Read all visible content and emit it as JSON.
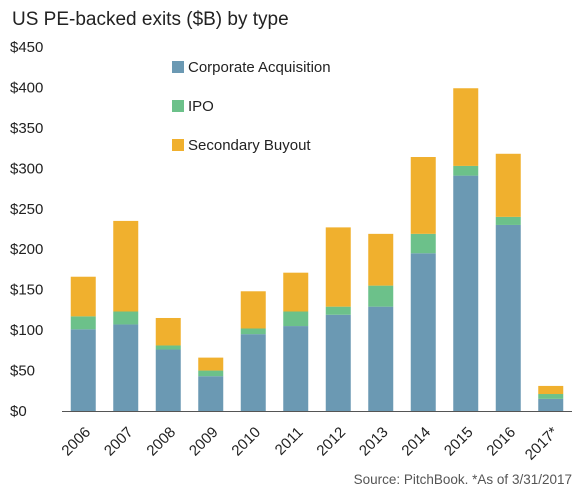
{
  "chart_data": {
    "type": "bar",
    "stacked": true,
    "title": "US PE-backed exits ($B) by type",
    "xlabel": "",
    "ylabel": "",
    "categories": [
      "2006",
      "2007",
      "2008",
      "2009",
      "2010",
      "2011",
      "2012",
      "2013",
      "2014",
      "2015",
      "2016",
      "2017*"
    ],
    "ylim": [
      0,
      450
    ],
    "yticks": [
      0,
      50,
      100,
      150,
      200,
      250,
      300,
      350,
      400,
      450
    ],
    "ytick_labels": [
      "$0",
      "$50",
      "$100",
      "$150",
      "$200",
      "$250",
      "$300",
      "$350",
      "$400",
      "$450"
    ],
    "grid": false,
    "legend_position": "top-left",
    "series": [
      {
        "name": "Corporate Acquisition",
        "color": "#6b99b3",
        "values": [
          101,
          107,
          76,
          43,
          95,
          105,
          119,
          129,
          195,
          291,
          230,
          15
        ]
      },
      {
        "name": "IPO",
        "color": "#6cc18a",
        "values": [
          16,
          16,
          5,
          7,
          7,
          18,
          10,
          26,
          24,
          12,
          10,
          6
        ]
      },
      {
        "name": "Secondary Buyout",
        "color": "#f0b02e",
        "values": [
          49,
          112,
          34,
          16,
          46,
          48,
          98,
          64,
          95,
          96,
          78,
          10
        ]
      }
    ],
    "source": "Source: PitchBook. *As of 3/31/2017"
  }
}
